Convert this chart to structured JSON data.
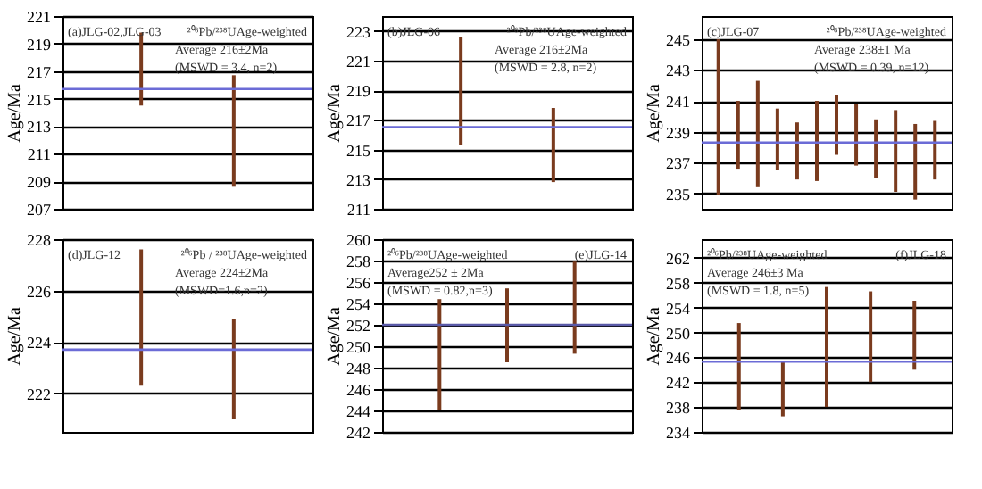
{
  "chart_data": [
    {
      "type": "bar",
      "categories": [
        null,
        null
      ],
      "values": [
        5.3,
        8.1
      ],
      "base": [
        214.5,
        208.6
      ],
      "color": "#7a3b1e",
      "ylabel": "Age/Ma",
      "ylim": [
        207,
        221
      ],
      "yticks": [
        207,
        209,
        211,
        213,
        215,
        217,
        219,
        221
      ],
      "grid": "y",
      "tick_labels": "y",
      "ref_lines": [
        {
          "axis": "y",
          "value": 215.7,
          "color": "#6b6bd6"
        }
      ],
      "annotations": [
        "(a)JLG-02,JLG-03",
        "²⁰⁶Pb/²³⁸UAge-weighted",
        "Average 216±2Ma",
        "(MSWD = 3.4, n=2)"
      ]
    },
    {
      "type": "bar",
      "categories": [
        null,
        null
      ],
      "values": [
        7.3,
        5.0
      ],
      "base": [
        215.3,
        212.8
      ],
      "color": "#7a3b1e",
      "ylabel": "Age/Ma",
      "ylim": [
        211,
        224
      ],
      "yticks": [
        211,
        213,
        215,
        217,
        219,
        221,
        223
      ],
      "grid": "y",
      "tick_labels": "y",
      "ref_lines": [
        {
          "axis": "y",
          "value": 216.5,
          "color": "#6b6bd6"
        }
      ],
      "annotations": [
        "(b)JLG-06",
        "²⁰⁶Pb/²³⁸UAge-weighted",
        "Average 216±2Ma",
        "(MSWD = 2.8, n=2)"
      ]
    },
    {
      "type": "bar",
      "categories": [
        null,
        null,
        null,
        null,
        null,
        null,
        null,
        null,
        null,
        null,
        null,
        null
      ],
      "values": [
        10.1,
        4.4,
        6.9,
        4.0,
        3.7,
        5.2,
        3.9,
        4.0,
        3.8,
        5.3,
        4.9,
        3.8
      ],
      "base": [
        234.9,
        236.6,
        235.4,
        236.5,
        235.9,
        235.8,
        237.5,
        236.8,
        236.0,
        235.1,
        234.6,
        235.9
      ],
      "color": "#7a3b1e",
      "ylabel": "Age/Ma",
      "ylim": [
        234,
        246.5
      ],
      "yticks": [
        235,
        237,
        239,
        241,
        243,
        245
      ],
      "grid": "y",
      "tick_labels": "y",
      "ref_lines": [
        {
          "axis": "y",
          "value": 238.3,
          "color": "#6b6bd6"
        }
      ],
      "annotations": [
        "(c)JLG-07",
        "²⁰⁶Pb/²³⁸UAge-weighted",
        "Average 238±1 Ma",
        "(MSWD = 0.39, n=12)"
      ]
    },
    {
      "type": "bar",
      "categories": [
        null,
        null
      ],
      "values": [
        5.3,
        3.9
      ],
      "base": [
        222.3,
        221.0
      ],
      "color": "#7a3b1e",
      "ylabel": "Age/Ma",
      "ylim": [
        220.5,
        228
      ],
      "yticks": [
        222,
        224,
        226,
        228
      ],
      "grid": "y",
      "tick_labels": "y",
      "ref_lines": [
        {
          "axis": "y",
          "value": 223.7,
          "color": "#6b6bd6"
        }
      ],
      "annotations": [
        "(d)JLG-12",
        "²⁰⁶Pb / ²³⁸UAge-weighted",
        "Average 224±2Ma",
        "(MSWD=1.6,n=2)"
      ]
    },
    {
      "type": "bar",
      "categories": [
        null,
        null,
        null
      ],
      "values": [
        10.4,
        6.9,
        8.6
      ],
      "base": [
        244.0,
        248.5,
        249.3
      ],
      "color": "#7a3b1e",
      "ylabel": "Age/Ma",
      "ylim": [
        242,
        260
      ],
      "yticks": [
        242,
        244,
        246,
        248,
        250,
        252,
        254,
        256,
        258,
        260
      ],
      "grid": "y",
      "tick_labels": "y",
      "ref_lines": [
        {
          "axis": "y",
          "value": 252,
          "color": "#5a5aa8"
        }
      ],
      "annotations": [
        "(e)JLG-14",
        "²⁰⁶Pb/²³⁸UAge-weighted",
        "Average252 ± 2Ma",
        "(MSWD = 0.82,n=3)"
      ]
    },
    {
      "type": "bar",
      "categories": [
        null,
        null,
        null,
        null,
        null
      ],
      "values": [
        14.0,
        8.8,
        19.3,
        14.6,
        11.1
      ],
      "base": [
        237.5,
        236.5,
        238.0,
        242.0,
        244.0
      ],
      "color": "#7a3b1e",
      "ylabel": "Age/Ma",
      "ylim": [
        234,
        265
      ],
      "yticks": [
        234,
        238,
        242,
        246,
        250,
        254,
        258,
        262
      ],
      "grid": "y",
      "tick_labels": "y",
      "ref_lines": [
        {
          "axis": "y",
          "value": 245.3,
          "color": "#6b6bd6"
        }
      ],
      "annotations": [
        "(f)JLG-18",
        "²⁰⁶Pb/²³⁸UAge-weighted",
        "Average 246±3 Ma",
        "(MSWD = 1.8, n=5)"
      ]
    }
  ]
}
